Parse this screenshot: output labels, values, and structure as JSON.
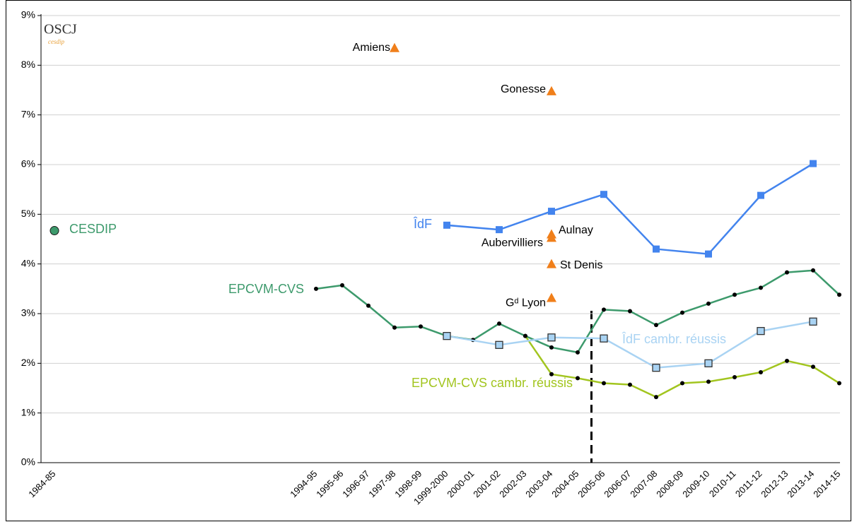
{
  "chart_data": {
    "type": "line",
    "logo": {
      "text": "OSCJ",
      "sub": "cesdip"
    },
    "categories": [
      "1984-85",
      null,
      null,
      null,
      null,
      null,
      null,
      null,
      null,
      null,
      "1994-95",
      "1995-96",
      "1996-97",
      "1997-98",
      "1998-99",
      "1999-2000",
      "2000-01",
      "2001-02",
      "2002-03",
      "2003-04",
      "2004-05",
      "2005-06",
      "2006-07",
      "2007-08",
      "2008-09",
      "2009-10",
      "2010-11",
      "2011-12",
      "2012-13",
      "2013-14",
      "2014-15"
    ],
    "ylim": [
      0,
      9
    ],
    "yticks": [
      {
        "value": 0,
        "label": "0%"
      },
      {
        "value": 1,
        "label": "1%"
      },
      {
        "value": 2,
        "label": "2%"
      },
      {
        "value": 3,
        "label": "3%"
      },
      {
        "value": 4,
        "label": "4%"
      },
      {
        "value": 5,
        "label": "5%"
      },
      {
        "value": 6,
        "label": "6%"
      },
      {
        "value": 7,
        "label": "7%"
      },
      {
        "value": 8,
        "label": "8%"
      },
      {
        "value": 9,
        "label": "9%"
      }
    ],
    "grid": true,
    "series": [
      {
        "name": "CESDIP",
        "color": "#3d9a6c",
        "marker": "circle",
        "values": [
          4.67,
          null,
          null,
          null,
          null,
          null,
          null,
          null,
          null,
          null,
          null,
          null,
          null,
          null,
          null,
          null,
          null,
          null,
          null,
          null,
          null,
          null,
          null,
          null,
          null,
          null,
          null,
          null,
          null,
          null,
          null
        ]
      },
      {
        "name": "EPCVM-CVS",
        "color": "#3d9a6c",
        "marker": "dot",
        "values": [
          null,
          null,
          null,
          null,
          null,
          null,
          null,
          null,
          null,
          null,
          3.5,
          3.57,
          3.16,
          2.72,
          2.74,
          2.55,
          2.47,
          2.8,
          2.55,
          2.32,
          2.22,
          3.08,
          3.05,
          2.77,
          3.02,
          3.2,
          3.38,
          3.52,
          3.83,
          3.87,
          3.38
        ]
      },
      {
        "name": "EPCVM-CVS cambr. réussis",
        "color": "#a2c51f",
        "marker": "dot",
        "values": [
          null,
          null,
          null,
          null,
          null,
          null,
          null,
          null,
          null,
          null,
          null,
          null,
          null,
          null,
          null,
          null,
          null,
          null,
          2.55,
          1.78,
          1.7,
          1.6,
          1.57,
          1.32,
          1.6,
          1.63,
          1.72,
          1.82,
          2.05,
          1.93,
          1.6
        ]
      },
      {
        "name": "ÎdF",
        "color": "#4384ee",
        "marker": "square",
        "values": [
          null,
          null,
          null,
          null,
          null,
          null,
          null,
          null,
          null,
          null,
          null,
          null,
          null,
          null,
          null,
          4.78,
          null,
          4.69,
          null,
          5.06,
          null,
          5.4,
          null,
          4.3,
          null,
          4.2,
          null,
          5.38,
          null,
          6.02,
          null
        ]
      },
      {
        "name": "ÎdF cambr. réussis",
        "color": "#a9d3f3",
        "marker": "square-outlined",
        "values": [
          null,
          null,
          null,
          null,
          null,
          null,
          null,
          null,
          null,
          null,
          null,
          null,
          null,
          null,
          null,
          2.55,
          null,
          2.37,
          null,
          2.52,
          null,
          2.5,
          null,
          1.91,
          null,
          2.0,
          null,
          2.65,
          null,
          2.84,
          null
        ]
      }
    ],
    "points": {
      "color": "#f07f1a",
      "marker": "triangle",
      "items": [
        {
          "label": "Amiens",
          "x": "1997-98",
          "value": 8.35
        },
        {
          "label": "Gonesse",
          "x": "2003-04",
          "value": 7.48
        },
        {
          "label": "Aulnay",
          "x": "2003-04",
          "value": 4.6
        },
        {
          "label": "Aubervilliers",
          "x": "2003-04",
          "value": 4.53
        },
        {
          "label": "St Denis",
          "x": "2003-04",
          "value": 4.0
        },
        {
          "label": "Gᵈ Lyon",
          "x": "2003-04",
          "value": 3.32
        }
      ]
    }
  }
}
